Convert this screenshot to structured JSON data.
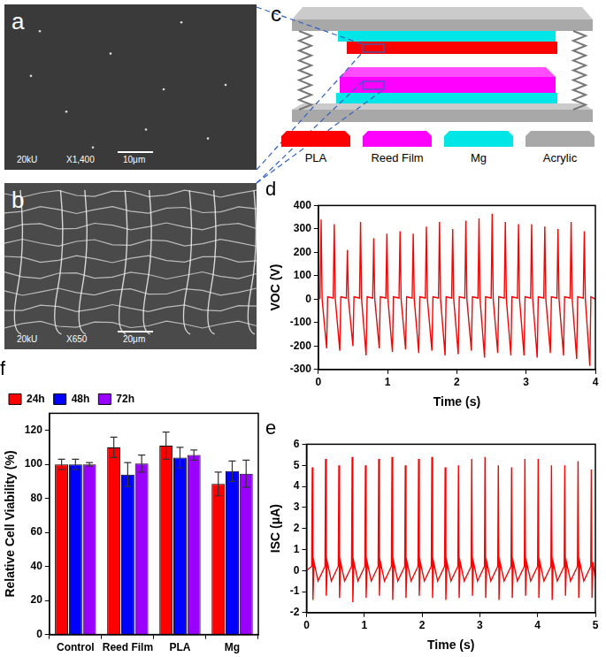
{
  "sem_images": [
    {
      "label": "a",
      "voltage": "20kU",
      "magnification": "X1,400",
      "scale_bar": "10μm"
    },
    {
      "label": "b",
      "voltage": "20kU",
      "magnification": "X650",
      "scale_bar": "20μm"
    }
  ],
  "schematic": {
    "label": "c",
    "legend": [
      {
        "name": "PLA",
        "color": "#ff0000"
      },
      {
        "name": "Reed Film",
        "color": "#ff00ff"
      },
      {
        "name": "Mg",
        "color": "#00e5e5"
      },
      {
        "name": "Acrylic",
        "color": "#a8a8a8"
      }
    ]
  },
  "chart_data": [
    {
      "type": "line",
      "title": "d",
      "x_label": "Time (s)",
      "y_label": "VOC (V)",
      "x": [
        0,
        0.025,
        0.04,
        0.055,
        0.12,
        0.135,
        0.215,
        0.23,
        0.245,
        0.31,
        0.325,
        0.405,
        0.42,
        0.435,
        0.5,
        0.515,
        0.595,
        0.61,
        0.625,
        0.69,
        0.705,
        0.785,
        0.8,
        0.815,
        0.88,
        0.895,
        0.975,
        0.99,
        1.005,
        1.07,
        1.085,
        1.165,
        1.18,
        1.195,
        1.26,
        1.275,
        1.355,
        1.37,
        1.385,
        1.45,
        1.465,
        1.545,
        1.56,
        1.575,
        1.64,
        1.655,
        1.735,
        1.75,
        1.765,
        1.83,
        1.845,
        1.925,
        1.94,
        1.955,
        2.02,
        2.035,
        2.115,
        2.13,
        2.145,
        2.21,
        2.225,
        2.305,
        2.32,
        2.335,
        2.4,
        2.415,
        2.495,
        2.51,
        2.525,
        2.59,
        2.605,
        2.685,
        2.7,
        2.715,
        2.78,
        2.795,
        2.875,
        2.89,
        2.905,
        2.97,
        2.985,
        3.065,
        3.08,
        3.095,
        3.16,
        3.175,
        3.255,
        3.27,
        3.285,
        3.35,
        3.365,
        3.445,
        3.46,
        3.475,
        3.54,
        3.555,
        3.635,
        3.65,
        3.665,
        3.73,
        3.745,
        3.825,
        3.84,
        3.855,
        3.92,
        3.935,
        4
      ],
      "series": [
        {
          "name": "VOC",
          "color": "#ff0000",
          "values": [
            0,
            5,
            340,
            0,
            -210,
            10,
            5,
            320,
            0,
            -220,
            10,
            5,
            210,
            0,
            -200,
            10,
            5,
            330,
            0,
            -240,
            10,
            5,
            260,
            0,
            -210,
            10,
            5,
            280,
            0,
            -225,
            10,
            5,
            290,
            0,
            -215,
            10,
            5,
            280,
            0,
            -230,
            10,
            5,
            310,
            0,
            -220,
            10,
            5,
            330,
            0,
            -240,
            10,
            5,
            300,
            0,
            -235,
            10,
            5,
            335,
            0,
            -220,
            10,
            5,
            345,
            0,
            -250,
            10,
            5,
            365,
            0,
            -230,
            10,
            5,
            330,
            0,
            -240,
            10,
            5,
            320,
            0,
            -240,
            10,
            5,
            320,
            0,
            -250,
            10,
            5,
            310,
            0,
            -230,
            10,
            5,
            300,
            0,
            -240,
            10,
            5,
            330,
            0,
            -255,
            10,
            5,
            290,
            0,
            -285,
            10,
            0
          ]
        }
      ],
      "xlim": [
        0,
        4
      ],
      "xticks": [
        0,
        1,
        2,
        3,
        4
      ],
      "ylim": [
        -300,
        400
      ],
      "yticks": [
        -300,
        -200,
        -100,
        0,
        100,
        200,
        300,
        400
      ],
      "grid": false
    },
    {
      "type": "line",
      "title": "e",
      "x_label": "Time (s)",
      "y_label": "ISC (μA)",
      "x": [
        0,
        0.09,
        0.1,
        0.112,
        0.13,
        0.2,
        0.32,
        0.33,
        0.342,
        0.36,
        0.43,
        0.55,
        0.56,
        0.572,
        0.59,
        0.66,
        0.78,
        0.79,
        0.802,
        0.82,
        0.89,
        1.01,
        1.02,
        1.032,
        1.05,
        1.12,
        1.24,
        1.25,
        1.262,
        1.28,
        1.35,
        1.47,
        1.48,
        1.492,
        1.51,
        1.58,
        1.7,
        1.71,
        1.722,
        1.74,
        1.81,
        1.93,
        1.94,
        1.952,
        1.97,
        2.04,
        2.16,
        2.17,
        2.182,
        2.2,
        2.27,
        2.39,
        2.4,
        2.412,
        2.43,
        2.5,
        2.62,
        2.63,
        2.642,
        2.66,
        2.73,
        2.85,
        2.86,
        2.872,
        2.89,
        2.96,
        3.08,
        3.09,
        3.102,
        3.12,
        3.19,
        3.31,
        3.32,
        3.332,
        3.35,
        3.42,
        3.54,
        3.55,
        3.562,
        3.58,
        3.65,
        3.77,
        3.78,
        3.792,
        3.81,
        3.88,
        4,
        4.01,
        4.022,
        4.04,
        4.11,
        4.23,
        4.24,
        4.252,
        4.27,
        4.34,
        4.46,
        4.47,
        4.482,
        4.5,
        4.57,
        4.69,
        4.7,
        4.712,
        4.73,
        4.8,
        4.92,
        4.93,
        4.942,
        4.96,
        4.99,
        5
      ],
      "series": [
        {
          "name": "ISC",
          "color": "#ff0000",
          "values": [
            0,
            0.2,
            4.9,
            -1.4,
            0.4,
            -0.5,
            0.2,
            5.3,
            -1.2,
            0.4,
            -0.5,
            0.2,
            5.0,
            -1.3,
            0.4,
            -0.5,
            0.2,
            5.4,
            -1.5,
            0.4,
            -0.5,
            0.2,
            5.0,
            -1.3,
            0.4,
            -0.5,
            0.2,
            5.3,
            -1.2,
            0.4,
            -0.5,
            0.2,
            5.4,
            -1.4,
            0.4,
            -0.5,
            0.2,
            5.0,
            -1.3,
            0.4,
            -0.5,
            0.2,
            5.3,
            -1.2,
            0.4,
            -0.5,
            0.2,
            5.4,
            -1.3,
            0.4,
            -0.5,
            0.2,
            4.9,
            -1.4,
            0.4,
            -0.5,
            0.2,
            5.0,
            -1.3,
            0.4,
            -0.5,
            0.2,
            5.3,
            -1.2,
            0.4,
            -0.5,
            0.2,
            5.4,
            -1.3,
            0.4,
            -0.5,
            0.2,
            5.0,
            -1.4,
            0.4,
            -0.5,
            0.2,
            4.9,
            -1.3,
            0.4,
            -0.5,
            0.2,
            5.3,
            -1.2,
            0.4,
            -0.5,
            0.2,
            5.3,
            -1.3,
            0.4,
            -0.5,
            0.2,
            5.0,
            -1.4,
            0.4,
            -0.5,
            0.2,
            5.0,
            -1.2,
            0.4,
            -0.5,
            0.2,
            5.2,
            -1.3,
            0.4,
            -0.5,
            0.2,
            4.8,
            -1.3,
            0.4,
            -0.2,
            0
          ]
        }
      ],
      "xlim": [
        0,
        5
      ],
      "xticks": [
        0,
        1,
        2,
        3,
        4,
        5
      ],
      "ylim": [
        -2,
        6
      ],
      "yticks": [
        -2,
        -1,
        0,
        1,
        2,
        3,
        4,
        5,
        6
      ],
      "grid": false
    },
    {
      "type": "bar",
      "title": "f",
      "y_label": "Relative Cell Viability (%)",
      "categories": [
        "Control",
        "Reed Film",
        "PLA",
        "Mg"
      ],
      "series": [
        {
          "name": "24h",
          "color": "#ff0000",
          "values": [
            100,
            110,
            111,
            88.5
          ],
          "errors": [
            3,
            6,
            8,
            7
          ]
        },
        {
          "name": "48h",
          "color": "#0000ff",
          "values": [
            100,
            94,
            104,
            96
          ],
          "errors": [
            3,
            7,
            6,
            6
          ]
        },
        {
          "name": "72h",
          "color": "#9900ff",
          "values": [
            100,
            100.5,
            105.5,
            94.5
          ],
          "errors": [
            1,
            5,
            3,
            8
          ]
        }
      ],
      "ylim": [
        0,
        130
      ],
      "yticks": [
        0,
        20,
        40,
        60,
        80,
        100,
        120
      ],
      "grid": false,
      "legend": "top-left"
    }
  ]
}
